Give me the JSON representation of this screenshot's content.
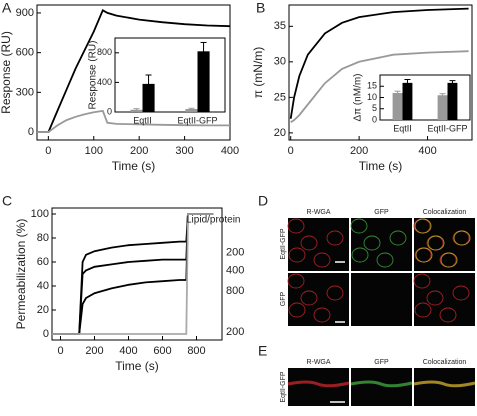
{
  "panel_labels": [
    "A",
    "B",
    "C",
    "D",
    "E"
  ],
  "chart_data": [
    {
      "type": "line",
      "xlabel": "Time (s)",
      "ylabel": "Response (RU)",
      "x": [
        -25,
        0,
        20,
        40,
        60,
        80,
        100,
        120,
        130,
        150,
        200,
        250,
        300,
        350,
        400
      ],
      "series": [
        {
          "name": "EqtII",
          "color": "#000000",
          "values": [
            0,
            0,
            160,
            320,
            480,
            620,
            760,
            920,
            900,
            880,
            850,
            830,
            815,
            805,
            800
          ]
        },
        {
          "name": "EqtII-GFP",
          "color": "#999999",
          "values": [
            0,
            0,
            50,
            90,
            115,
            135,
            150,
            160,
            70,
            62,
            58,
            55,
            52,
            50,
            50
          ]
        }
      ],
      "xlim": [
        -25,
        400
      ],
      "xticks": [
        0,
        100,
        200,
        300,
        400
      ],
      "ylim": [
        -60,
        960
      ],
      "yticks": [
        0,
        300,
        600,
        900
      ]
    },
    {
      "type": "bar",
      "ylabel": "Response (RU)",
      "categories": [
        "EqtII",
        "EqtII-GFP"
      ],
      "series": [
        {
          "color": "#999999",
          "values": [
            30,
            40
          ],
          "errors": [
            15,
            10
          ]
        },
        {
          "color": "#000000",
          "values": [
            380,
            820
          ],
          "errors": [
            120,
            120
          ]
        }
      ],
      "ylim": [
        0,
        1000
      ],
      "yticks": [
        0,
        400,
        800
      ]
    },
    {
      "type": "line",
      "xlabel": "Time (s)",
      "ylabel": "π (mN/m)",
      "x": [
        0,
        10,
        25,
        50,
        100,
        150,
        200,
        300,
        400,
        520
      ],
      "series": [
        {
          "name": "EqtII",
          "color": "#000000",
          "values": [
            22,
            25,
            28,
            31,
            34,
            35.5,
            36.3,
            37,
            37.3,
            37.5
          ]
        },
        {
          "name": "EqtII-GFP",
          "color": "#999999",
          "values": [
            21.5,
            21.8,
            22.5,
            24,
            27,
            29,
            30,
            31,
            31.3,
            31.5
          ]
        }
      ],
      "xlim": [
        -5,
        530
      ],
      "xticks": [
        0,
        200,
        400
      ],
      "ylim": [
        19,
        38
      ],
      "yticks": [
        20,
        25,
        30,
        35
      ]
    },
    {
      "type": "bar",
      "ylabel": "Δπ (nM/m)",
      "categories": [
        "EqtII",
        "EqtII-GFP"
      ],
      "series": [
        {
          "color": "#999999",
          "values": [
            12,
            11
          ],
          "errors": [
            0.8,
            0.7
          ]
        },
        {
          "color": "#000000",
          "values": [
            16.5,
            16.5
          ],
          "errors": [
            1.5,
            1
          ]
        }
      ],
      "ylim": [
        0,
        20
      ],
      "yticks": [
        0,
        5,
        10,
        15
      ]
    },
    {
      "type": "line",
      "xlabel": "Time (s)",
      "ylabel": "Permeabilization (%)",
      "legend_title": "Lipid/protein",
      "x": [
        -50,
        100,
        110,
        130,
        150,
        200,
        300,
        400,
        500,
        600,
        700,
        740,
        750,
        760,
        800,
        850,
        900
      ],
      "series": [
        {
          "name": "200",
          "color": "#000000",
          "values": [
            0,
            0,
            0,
            60,
            66,
            69,
            72,
            74,
            75,
            76,
            77,
            77,
            100,
            100,
            100,
            100,
            100
          ]
        },
        {
          "name": "400",
          "color": "#000000",
          "values": [
            0,
            0,
            0,
            50,
            53,
            56,
            58,
            60,
            61,
            62,
            62,
            62,
            100,
            100,
            100,
            100,
            100
          ]
        },
        {
          "name": "800",
          "color": "#000000",
          "values": [
            0,
            0,
            0,
            25,
            30,
            34,
            38,
            41,
            43,
            44,
            45,
            45,
            100,
            100,
            100,
            100,
            100
          ]
        },
        {
          "name": "200",
          "color": "#aaaaaa",
          "values": [
            0,
            0,
            0,
            0,
            0,
            0,
            0,
            0,
            0,
            0,
            0,
            0,
            100,
            100,
            100,
            100,
            100
          ]
        }
      ],
      "xlim": [
        -50,
        950
      ],
      "xticks": [
        0,
        200,
        400,
        600,
        800
      ],
      "ylim": [
        -5,
        105
      ],
      "yticks": [
        0,
        20,
        40,
        60,
        80,
        100
      ]
    }
  ],
  "microscopy": {
    "D": {
      "columns": [
        "R-WGA",
        "GFP",
        "Colocalization"
      ],
      "rows": [
        "EqtII-GFP",
        "GFP"
      ]
    },
    "E": {
      "columns": [
        "R-WGA",
        "GFP",
        "Colocalization"
      ],
      "rows": [
        "EqtII-GFP"
      ]
    }
  }
}
